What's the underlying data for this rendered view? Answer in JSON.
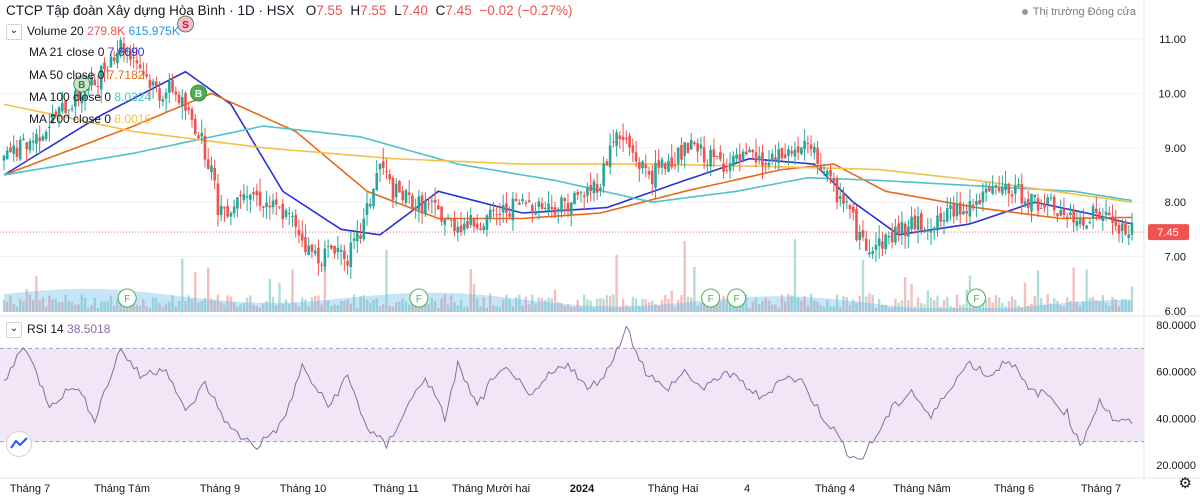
{
  "header": {
    "symbol": "CTCP Tập đoàn Xây dựng Hòa Bình",
    "interval": "1D",
    "exchange": "HSX",
    "open_label": "O",
    "open": "7.55",
    "high_label": "H",
    "high": "7.55",
    "low_label": "L",
    "low": "7.40",
    "close_label": "C",
    "close": "7.45",
    "change": "−0.02 (−0.27%)",
    "market_status": "Thị trường Đóng cửa"
  },
  "legends": {
    "volume": {
      "label": "Volume 20",
      "v1": "279.8K",
      "v2": "615.975K"
    },
    "ma21": {
      "label": "MA 21 close 0",
      "value": "7.6090"
    },
    "ma50": {
      "label": "MA 50 close 0",
      "value": "7.7182"
    },
    "ma100": {
      "label": "MA 100 close 0",
      "value": "8.0324"
    },
    "ma200": {
      "label": "MA 200 close 0",
      "value": "8.0016"
    },
    "rsi": {
      "label": "RSI 14",
      "value": "38.5018"
    }
  },
  "colors": {
    "up": "#26a69a",
    "down": "#ef5350",
    "ma21": "#2931d4",
    "ma50": "#e86a17",
    "ma100": "#4fc3c9",
    "ma200": "#f4c04a",
    "volume_ma": "#5db4e6",
    "rsi": "#8e6aa8",
    "rsi_band": "#ede0f3",
    "price_tag": "#ef5350"
  },
  "chart_data": [
    {
      "type": "candlestick",
      "yaxis_ticks": [
        "11.00",
        "10.00",
        "9.00",
        "8.00",
        "7.00",
        "6.00"
      ],
      "ylim": [
        5.98,
        11.35
      ],
      "last_price_label": "7.45",
      "xaxis_ticks": [
        "Tháng 7",
        "Tháng Tám",
        "Tháng 9",
        "Tháng 10",
        "Tháng 11",
        "Tháng Mười hai",
        "2024",
        "Tháng Hai",
        "4",
        "Tháng 4",
        "Tháng Năm",
        "Tháng 6",
        "Tháng 7"
      ],
      "close_path": [
        [
          0,
          8.8
        ],
        [
          5,
          9.0
        ],
        [
          10,
          9.2
        ],
        [
          16,
          9.6
        ],
        [
          22,
          9.9
        ],
        [
          28,
          10.2
        ],
        [
          32,
          10.6
        ],
        [
          36,
          10.9
        ],
        [
          40,
          10.7
        ],
        [
          44,
          10.3
        ],
        [
          48,
          10.0
        ],
        [
          52,
          10.1
        ],
        [
          56,
          9.7
        ],
        [
          60,
          9.3
        ],
        [
          64,
          8.6
        ],
        [
          66,
          7.9
        ],
        [
          70,
          7.9
        ],
        [
          74,
          8.3
        ],
        [
          80,
          8.0
        ],
        [
          86,
          7.8
        ],
        [
          90,
          7.6
        ],
        [
          94,
          7.1
        ],
        [
          98,
          7.0
        ],
        [
          102,
          7.2
        ],
        [
          106,
          7.0
        ],
        [
          110,
          7.4
        ],
        [
          116,
          8.7
        ],
        [
          120,
          8.2
        ],
        [
          126,
          8.0
        ],
        [
          132,
          7.9
        ],
        [
          138,
          7.6
        ],
        [
          144,
          7.6
        ],
        [
          150,
          7.7
        ],
        [
          156,
          7.9
        ],
        [
          162,
          8.0
        ],
        [
          168,
          7.9
        ],
        [
          174,
          8.0
        ],
        [
          180,
          8.2
        ],
        [
          184,
          8.4
        ],
        [
          188,
          9.2
        ],
        [
          192,
          9.1
        ],
        [
          196,
          8.7
        ],
        [
          200,
          8.5
        ],
        [
          206,
          8.8
        ],
        [
          212,
          9.0
        ],
        [
          218,
          8.8
        ],
        [
          224,
          8.7
        ],
        [
          230,
          8.8
        ],
        [
          236,
          8.7
        ],
        [
          242,
          8.9
        ],
        [
          248,
          9.0
        ],
        [
          252,
          8.7
        ],
        [
          256,
          8.2
        ],
        [
          260,
          8.0
        ],
        [
          264,
          7.3
        ],
        [
          268,
          7.2
        ],
        [
          272,
          7.3
        ],
        [
          276,
          7.5
        ],
        [
          282,
          7.6
        ],
        [
          288,
          7.6
        ],
        [
          294,
          7.9
        ],
        [
          300,
          8.0
        ],
        [
          306,
          8.2
        ],
        [
          312,
          8.2
        ],
        [
          318,
          8.0
        ],
        [
          324,
          7.9
        ],
        [
          330,
          7.6
        ],
        [
          336,
          7.8
        ],
        [
          340,
          7.7
        ],
        [
          344,
          7.5
        ],
        [
          348,
          7.45
        ]
      ],
      "series": [
        {
          "name": "MA 21",
          "path": [
            [
              0,
              8.5
            ],
            [
              30,
              9.6
            ],
            [
              56,
              10.4
            ],
            [
              70,
              9.8
            ],
            [
              86,
              8.2
            ],
            [
              104,
              7.5
            ],
            [
              116,
              7.4
            ],
            [
              134,
              8.2
            ],
            [
              160,
              7.8
            ],
            [
              186,
              7.9
            ],
            [
              210,
              8.4
            ],
            [
              230,
              8.8
            ],
            [
              250,
              8.7
            ],
            [
              262,
              8.0
            ],
            [
              276,
              7.4
            ],
            [
              298,
              7.6
            ],
            [
              318,
              8.0
            ],
            [
              334,
              7.8
            ],
            [
              348,
              7.6
            ]
          ]
        },
        {
          "name": "MA 50",
          "path": [
            [
              0,
              8.5
            ],
            [
              40,
              9.4
            ],
            [
              64,
              10.0
            ],
            [
              90,
              9.3
            ],
            [
              112,
              8.2
            ],
            [
              134,
              7.7
            ],
            [
              160,
              7.7
            ],
            [
              184,
              7.8
            ],
            [
              210,
              8.2
            ],
            [
              240,
              8.6
            ],
            [
              256,
              8.7
            ],
            [
              272,
              8.2
            ],
            [
              300,
              7.9
            ],
            [
              326,
              7.7
            ],
            [
              348,
              7.72
            ]
          ]
        },
        {
          "name": "MA 100",
          "path": [
            [
              0,
              8.5
            ],
            [
              40,
              8.9
            ],
            [
              80,
              9.4
            ],
            [
              110,
              9.2
            ],
            [
              140,
              8.7
            ],
            [
              170,
              8.4
            ],
            [
              200,
              8.0
            ],
            [
              226,
              8.2
            ],
            [
              248,
              8.45
            ],
            [
              270,
              8.4
            ],
            [
              300,
              8.3
            ],
            [
              330,
              8.2
            ],
            [
              348,
              8.03
            ]
          ]
        },
        {
          "name": "MA 200",
          "path": [
            [
              0,
              9.8
            ],
            [
              40,
              9.3
            ],
            [
              80,
              9.0
            ],
            [
              120,
              8.8
            ],
            [
              160,
              8.7
            ],
            [
              200,
              8.7
            ],
            [
              240,
              8.65
            ],
            [
              270,
              8.6
            ],
            [
              300,
              8.4
            ],
            [
              330,
              8.15
            ],
            [
              348,
              8.0
            ]
          ]
        }
      ]
    },
    {
      "type": "bar",
      "name": "Volume 20",
      "note_markers": [
        "F",
        "F",
        "F",
        "F",
        "F"
      ],
      "signal_markers": [
        "B",
        "B",
        "S"
      ]
    },
    {
      "type": "line",
      "name": "RSI 14",
      "yaxis_ticks": [
        "80.0000",
        "60.0000",
        "40.0000",
        "20.0000"
      ],
      "ylim": [
        17,
        83
      ],
      "band": [
        30,
        70
      ],
      "last_value": 38.5018,
      "path": [
        [
          0,
          55
        ],
        [
          6,
          72
        ],
        [
          14,
          46
        ],
        [
          22,
          54
        ],
        [
          28,
          40
        ],
        [
          36,
          70
        ],
        [
          42,
          58
        ],
        [
          50,
          62
        ],
        [
          56,
          42
        ],
        [
          62,
          55
        ],
        [
          70,
          35
        ],
        [
          78,
          28
        ],
        [
          86,
          38
        ],
        [
          92,
          62
        ],
        [
          100,
          45
        ],
        [
          106,
          58
        ],
        [
          112,
          36
        ],
        [
          118,
          28
        ],
        [
          124,
          44
        ],
        [
          130,
          58
        ],
        [
          136,
          40
        ],
        [
          140,
          63
        ],
        [
          146,
          45
        ],
        [
          150,
          55
        ],
        [
          156,
          62
        ],
        [
          162,
          48
        ],
        [
          168,
          58
        ],
        [
          174,
          64
        ],
        [
          180,
          52
        ],
        [
          186,
          60
        ],
        [
          192,
          79
        ],
        [
          198,
          60
        ],
        [
          204,
          52
        ],
        [
          210,
          60
        ],
        [
          216,
          52
        ],
        [
          222,
          60
        ],
        [
          228,
          55
        ],
        [
          234,
          48
        ],
        [
          240,
          58
        ],
        [
          246,
          56
        ],
        [
          252,
          42
        ],
        [
          256,
          35
        ],
        [
          260,
          26
        ],
        [
          264,
          22
        ],
        [
          268,
          30
        ],
        [
          274,
          44
        ],
        [
          280,
          52
        ],
        [
          286,
          40
        ],
        [
          292,
          54
        ],
        [
          298,
          64
        ],
        [
          304,
          58
        ],
        [
          310,
          66
        ],
        [
          316,
          52
        ],
        [
          322,
          50
        ],
        [
          328,
          42
        ],
        [
          332,
          28
        ],
        [
          338,
          48
        ],
        [
          342,
          40
        ],
        [
          346,
          38
        ],
        [
          348,
          38.5
        ]
      ]
    }
  ]
}
